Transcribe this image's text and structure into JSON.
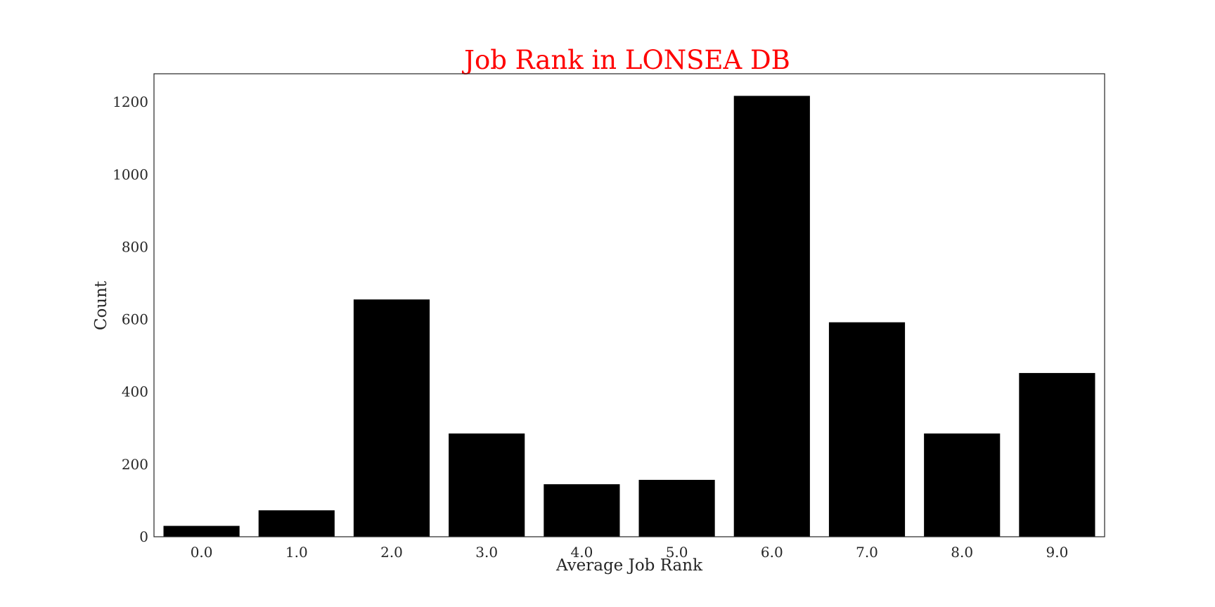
{
  "chart_data": {
    "type": "bar",
    "title": "Job Rank in LONSEA DB",
    "xlabel": "Average Job Rank",
    "ylabel": "Count",
    "categories": [
      "0.0",
      "1.0",
      "2.0",
      "3.0",
      "4.0",
      "5.0",
      "6.0",
      "7.0",
      "8.0",
      "9.0"
    ],
    "values": [
      30,
      73,
      655,
      285,
      145,
      157,
      1217,
      592,
      285,
      452
    ],
    "yticks": [
      "0",
      "200",
      "400",
      "600",
      "800",
      "1000",
      "1200"
    ],
    "ylim": [
      0,
      1278
    ],
    "grid": false,
    "colors": {
      "bar": "#000000",
      "title": "#ff0000",
      "text": "#262626",
      "frame": "#262626"
    }
  }
}
